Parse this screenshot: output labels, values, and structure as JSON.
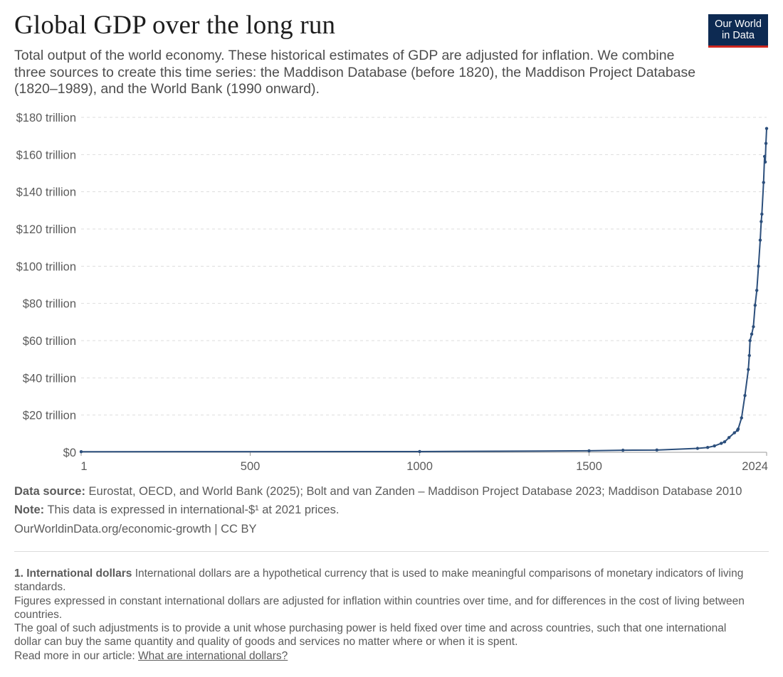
{
  "header": {
    "title": "Global GDP over the long run",
    "subtitle": "Total output of the world economy. These historical estimates of GDP are adjusted for inflation. We combine three sources to create this time series: the Maddison Database (before 1820), the Maddison Project Database (1820–1989), and the World Bank (1990 onward).",
    "logo_line1": "Our World",
    "logo_line2": "in Data"
  },
  "colors": {
    "line": "#2c4f7c",
    "logo_bg": "#0d2a52",
    "logo_accent": "#ce261e",
    "grid": "#dddddd"
  },
  "chart_data": {
    "type": "line",
    "title": "Global GDP over the long run",
    "xlabel": "",
    "ylabel": "",
    "xlim": [
      1,
      2024
    ],
    "ylim": [
      0,
      180
    ],
    "y_unit": "trillion international-$ (2021 prices)",
    "yticks": [
      {
        "value": 0,
        "label": "$0"
      },
      {
        "value": 20,
        "label": "$20 trillion"
      },
      {
        "value": 40,
        "label": "$40 trillion"
      },
      {
        "value": 60,
        "label": "$60 trillion"
      },
      {
        "value": 80,
        "label": "$80 trillion"
      },
      {
        "value": 100,
        "label": "$100 trillion"
      },
      {
        "value": 120,
        "label": "$120 trillion"
      },
      {
        "value": 140,
        "label": "$140 trillion"
      },
      {
        "value": 160,
        "label": "$160 trillion"
      },
      {
        "value": 180,
        "label": "$180 trillion"
      }
    ],
    "xticks": [
      {
        "value": 1,
        "label": "1"
      },
      {
        "value": 500,
        "label": "500"
      },
      {
        "value": 1000,
        "label": "1000"
      },
      {
        "value": 1500,
        "label": "1500"
      },
      {
        "value": 2024,
        "label": "2024"
      }
    ],
    "series": [
      {
        "name": "World GDP",
        "x": [
          1,
          1000,
          1500,
          1600,
          1700,
          1820,
          1850,
          1870,
          1890,
          1900,
          1913,
          1929,
          1938,
          1940,
          1950,
          1960,
          1970,
          1973,
          1975,
          1980,
          1985,
          1990,
          1995,
          2000,
          2005,
          2008,
          2010,
          2015,
          2018,
          2020,
          2022,
          2024
        ],
        "y": [
          0.3,
          0.4,
          0.8,
          1.1,
          1.2,
          2.1,
          2.6,
          3.4,
          4.8,
          5.6,
          7.9,
          10.5,
          11.8,
          12.5,
          18.5,
          30.5,
          44.5,
          52,
          60,
          63.5,
          67.5,
          79,
          87,
          100,
          114,
          124,
          128,
          145,
          159,
          156,
          166,
          174
        ]
      }
    ]
  },
  "source": {
    "source_label": "Data source:",
    "source_text": "Eurostat, OECD, and World Bank (2025); Bolt and van Zanden – Maddison Project Database 2023; Maddison Database 2010",
    "note_label": "Note:",
    "note_text": "This data is expressed in international-$¹ at 2021 prices.",
    "url_text": "OurWorldinData.org/economic-growth | CC BY"
  },
  "footnote": {
    "heading": "1. International dollars",
    "p1_text": "International dollars are a hypothetical currency that is used to make meaningful comparisons of monetary indicators of living standards.",
    "p2": "Figures expressed in constant international dollars are adjusted for inflation within countries over time, and for differences in the cost of living between countries.",
    "p3": "The goal of such adjustments is to provide a unit whose purchasing power is held fixed over time and across countries, such that one international dollar can buy the same quantity and quality of goods and services no matter where or when it is spent.",
    "p4_prefix": "Read more in our article:",
    "p4_link": "What are international dollars?"
  }
}
